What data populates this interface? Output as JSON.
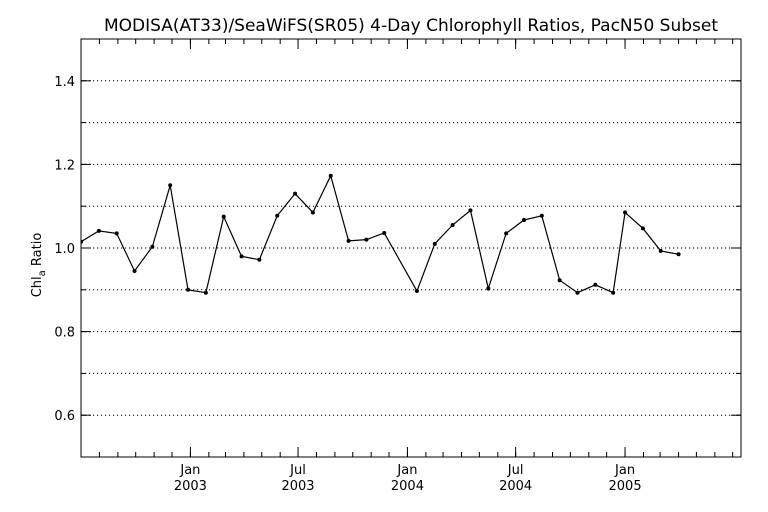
{
  "chart_data": {
    "type": "line",
    "title": "MODISA(AT33)/SeaWiFS(SR05) 4-Day Chlorophyll Ratios, PacN50 Subset",
    "ylabel": "Chl",
    "ylabel_subscript": "a",
    "ylabel_suffix": " Ratio",
    "xlabel": "",
    "ylim": [
      0.5,
      1.5
    ],
    "yticks": [
      0.6,
      0.8,
      1.0,
      1.2,
      1.4
    ],
    "ytick_labels": [
      "0.6",
      "0.8",
      "1.0",
      "1.2",
      "1.4"
    ],
    "grid": true,
    "xlim": [
      "2002-07-01",
      "2005-07-15"
    ],
    "xticks": [
      {
        "date": "2003-01-01",
        "month": "Jan",
        "year": "2003"
      },
      {
        "date": "2003-07-01",
        "month": "Jul",
        "year": "2003"
      },
      {
        "date": "2004-01-01",
        "month": "Jan",
        "year": "2004"
      },
      {
        "date": "2004-07-01",
        "month": "Jul",
        "year": "2004"
      },
      {
        "date": "2005-01-01",
        "month": "Jan",
        "year": "2005"
      }
    ],
    "series": [
      {
        "x": [
          "2002-07-01",
          "2002-07-31",
          "2002-08-30",
          "2002-09-29",
          "2002-10-29",
          "2002-11-28",
          "2002-12-28",
          "2003-01-27",
          "2003-02-26",
          "2003-03-28",
          "2003-04-27",
          "2003-05-27",
          "2003-06-26",
          "2003-07-26",
          "2003-08-25",
          "2003-09-24",
          "2003-10-24",
          "2003-11-23",
          "2004-01-17",
          "2004-02-16",
          "2004-03-17",
          "2004-04-16",
          "2004-05-16",
          "2004-06-15",
          "2004-07-15",
          "2004-08-14",
          "2004-09-13",
          "2004-10-13",
          "2004-11-12",
          "2004-12-12",
          "2005-01-01",
          "2005-01-31",
          "2005-03-02",
          "2005-04-01"
        ],
        "values": [
          1.015,
          1.041,
          1.035,
          0.945,
          1.003,
          1.15,
          0.9,
          0.893,
          1.075,
          0.98,
          0.972,
          1.077,
          1.13,
          1.085,
          1.173,
          1.017,
          1.02,
          1.036,
          0.897,
          1.01,
          1.055,
          1.09,
          0.903,
          1.035,
          1.067,
          1.077,
          0.923,
          0.893,
          0.912,
          0.893,
          1.085,
          1.047,
          0.993,
          0.985
        ]
      }
    ]
  }
}
